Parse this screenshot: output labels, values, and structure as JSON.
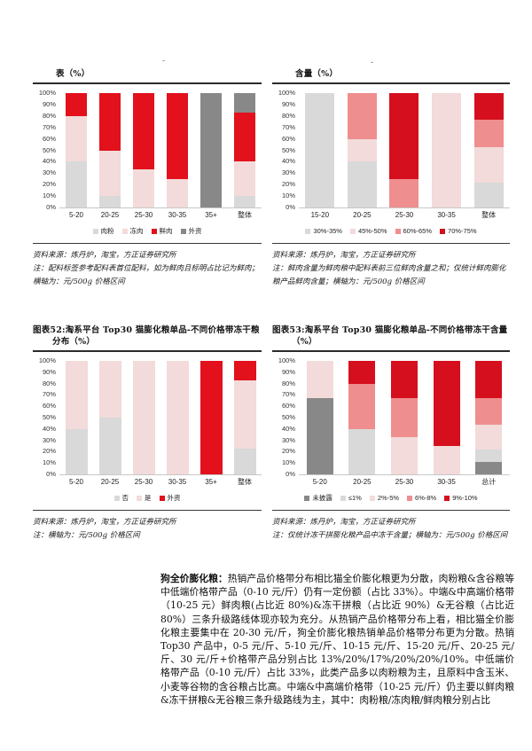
{
  "page": {
    "artifact_dashes": [
      "-",
      "-"
    ]
  },
  "colors": {
    "light_gray": "#d9d9d9",
    "dark_gray": "#888888",
    "light_pink": "#f2dbda",
    "salmon": "#ef8e8e",
    "red": "#e2111c",
    "dark_red": "#d50f1e"
  },
  "chart_data": [
    {
      "type": "bar",
      "stacked": true,
      "title": "表（%）",
      "categories": [
        "5-20",
        "20-25",
        "25-30",
        "30-35",
        "35+",
        "整体"
      ],
      "series": [
        {
          "name": "肉粉",
          "color_key": "light_gray",
          "values": [
            40,
            10,
            0,
            0,
            0,
            10
          ]
        },
        {
          "name": "冻肉",
          "color_key": "light_pink",
          "values": [
            40,
            40,
            33,
            25,
            0,
            30
          ]
        },
        {
          "name": "鲜肉",
          "color_key": "red",
          "values": [
            20,
            50,
            67,
            75,
            0,
            43
          ]
        },
        {
          "name": "外资",
          "color_key": "dark_gray",
          "values": [
            0,
            0,
            0,
            0,
            100,
            17
          ]
        }
      ],
      "ylim": [
        0,
        100
      ],
      "ytick_step": 10,
      "legend_position": "bottom",
      "grid": false,
      "source": "资料来源：炼丹炉，淘宝，方正证券研究所",
      "note": "注：配料标签参考配料表首位配料，如为鲜肉且标明占比记为鲜肉；横轴为：元/500g 价格区间"
    },
    {
      "type": "bar",
      "stacked": true,
      "title": "含量（%）",
      "categories": [
        "15-20",
        "20-25",
        "25-30",
        "30-35",
        "整体"
      ],
      "series": [
        {
          "name": "30%-35%",
          "color_key": "light_gray",
          "values": [
            100,
            40,
            0,
            0,
            22
          ]
        },
        {
          "name": "45%-50%",
          "color_key": "light_pink",
          "values": [
            0,
            20,
            0,
            100,
            31
          ]
        },
        {
          "name": "60%-65%",
          "color_key": "salmon",
          "values": [
            0,
            40,
            25,
            0,
            24
          ]
        },
        {
          "name": "70%-75%",
          "color_key": "dark_red",
          "values": [
            0,
            0,
            75,
            0,
            23
          ]
        }
      ],
      "ylim": [
        0,
        100
      ],
      "ytick_step": 10,
      "legend_position": "bottom",
      "grid": false,
      "source": "资料来源：炼丹炉，淘宝，方正证券研究所",
      "note": "注：鲜肉含量为鲜肉粮中配料表前三位鲜肉含量之和；仅统计鲜肉膨化粮产品鲜肉含量；横轴为：元/500g 价格区间"
    },
    {
      "type": "bar",
      "stacked": true,
      "title": "图表52:淘系平台 Top30 猫膨化粮单品-不同价格带冻干粮分布（%）",
      "categories": [
        "5-20",
        "20-25",
        "25-30",
        "30-35",
        "35+",
        "整体"
      ],
      "series": [
        {
          "name": "否",
          "color_key": "light_gray",
          "values": [
            40,
            50,
            0,
            0,
            0,
            23
          ]
        },
        {
          "name": "是",
          "color_key": "light_pink",
          "values": [
            60,
            50,
            100,
            100,
            0,
            60
          ]
        },
        {
          "name": "外资",
          "color_key": "red",
          "values": [
            0,
            0,
            0,
            0,
            100,
            17
          ]
        }
      ],
      "ylim": [
        0,
        100
      ],
      "ytick_step": 10,
      "legend_position": "bottom",
      "grid": false,
      "source": "资料来源：炼丹炉，淘宝，方正证券研究所",
      "note": "注：横轴为：元/500g 价格区间"
    },
    {
      "type": "bar",
      "stacked": true,
      "title": "图表53:淘系平台 Top30 猫膨化粮单品-不同价格带冻干含量（%）",
      "categories": [
        "5-20",
        "20-25",
        "25-30",
        "30-35",
        "总计"
      ],
      "series": [
        {
          "name": "未披露",
          "color_key": "dark_gray",
          "values": [
            67,
            0,
            0,
            0,
            11
          ]
        },
        {
          "name": "≤1%",
          "color_key": "light_gray",
          "values": [
            0,
            40,
            0,
            0,
            11
          ]
        },
        {
          "name": "2%-5%",
          "color_key": "light_pink",
          "values": [
            33,
            0,
            33,
            25,
            22
          ]
        },
        {
          "name": "6%-8%",
          "color_key": "salmon",
          "values": [
            0,
            40,
            34,
            0,
            23
          ]
        },
        {
          "name": "9%-10%",
          "color_key": "dark_red",
          "values": [
            0,
            20,
            33,
            75,
            33
          ]
        }
      ],
      "ylim": [
        0,
        100
      ],
      "ytick_step": 10,
      "legend_position": "bottom",
      "grid": false,
      "source": "资料来源：炼丹炉，淘宝，方正证券研究所",
      "note": "注：仅统计冻干拼膨化粮产品中冻干含量；横轴为：元/500g 价格区间"
    }
  ],
  "paragraph": {
    "lead": "狗全价膨化粮：",
    "body": "热销产品价格带分布相比猫全价膨化粮更为分散，肉粉粮&含谷粮等中低端价格带产品（0-10 元/斤）仍有一定份额（占比 33%）。中端&中高端价格带（10-25 元）鲜肉粮(占比近 80%)&冻干拼粮（占比近 90%）&无谷粮（占比近 80%）三条升级路线体现亦较为充分。从热销产品价格带分布上看，相比猫全价膨化粮主要集中在 20-30 元/斤，狗全价膨化粮热销单品价格带分布更为分散。热销 Top30 产品中，0-5 元/斤、5-10 元/斤、10-15 元/斤、15-20 元/斤、20-25 元/斤、30 元/斤+价格带产品分别占比 13%/20%/17%/20%/20%/10%。中低端价格带产品（0-10 元/斤）占比 33%，此类产品多以肉粉粮为主，且原料中含玉米、小麦等谷物的含谷粮占比高。中端&中高端价格带（10-25 元/斤）仍主要以鲜肉粮&冻干拼粮&无谷粮三条升级路线为主，其中：肉粉粮/冻肉粮/鲜肉粮分别占比"
  }
}
